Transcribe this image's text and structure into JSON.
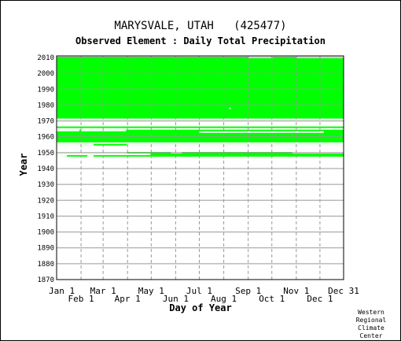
{
  "chart_data": {
    "type": "heatmap",
    "title": "MARYSVALE, UTAH   (425477)",
    "subtitle": "Observed Element : Daily Total Precipitation",
    "xlabel": "Day of Year",
    "ylabel": "Year",
    "x_ticks_row1": [
      "Jan 1",
      "Mar 1",
      "May 1",
      "Jul 1",
      "Sep 1",
      "Nov 1",
      "Dec 31"
    ],
    "x_ticks_row2": [
      "Feb 1",
      "Apr 1",
      "Jun 1",
      "Aug 1",
      "Oct 1",
      "Dec 1"
    ],
    "x_tick_days": [
      1,
      32,
      60,
      91,
      121,
      152,
      182,
      213,
      244,
      274,
      305,
      335,
      365
    ],
    "y_ticks": [
      2010,
      2000,
      1990,
      1980,
      1970,
      1960,
      1950,
      1940,
      1930,
      1920,
      1910,
      1900,
      1890,
      1880,
      1870
    ],
    "xlim": [
      1,
      365
    ],
    "ylim": [
      1870,
      2011
    ],
    "grid": true,
    "data_color": "#00ff00",
    "data_description": "Green marks days with observed precipitation data",
    "coverage_periods": [
      {
        "year_start": 1970.5,
        "year_end": 2010.5,
        "day_start": 1,
        "day_end": 365
      },
      {
        "year_start": 1954.5,
        "year_end": 1966.5,
        "day_start": 1,
        "day_end": 365
      },
      {
        "year_start": 1947.5,
        "year_end": 1950.5,
        "day_start": 1,
        "day_end": 365
      }
    ],
    "gaps": [
      {
        "year_start": 1970.5,
        "year_end": 1971.5,
        "day_start": 1,
        "day_end": 365
      },
      {
        "year_start": 2009.5,
        "year_end": 2010.5,
        "day_start": 244,
        "day_end": 275
      },
      {
        "year_start": 2009.5,
        "year_end": 2010.5,
        "day_start": 305,
        "day_end": 365
      },
      {
        "year_start": 1964.5,
        "year_end": 1965.5,
        "day_start": 1,
        "day_end": 365
      },
      {
        "year_start": 1963.5,
        "year_end": 1964.5,
        "day_start": 1,
        "day_end": 30
      },
      {
        "year_start": 1963.5,
        "year_end": 1964.5,
        "day_start": 32,
        "day_end": 89
      },
      {
        "year_start": 1962.5,
        "year_end": 1963.5,
        "day_start": 182,
        "day_end": 340
      },
      {
        "year_start": 1955.5,
        "year_end": 1956.5,
        "day_start": 1,
        "day_end": 365
      },
      {
        "year_start": 1954.5,
        "year_end": 1955.5,
        "day_start": 1,
        "day_end": 48
      },
      {
        "year_start": 1954.5,
        "year_end": 1955.5,
        "day_start": 90,
        "day_end": 365
      },
      {
        "year_start": 1950.5,
        "year_end": 1951.5,
        "day_start": 1,
        "day_end": 365
      },
      {
        "year_start": 1949.5,
        "year_end": 1950.5,
        "day_start": 1,
        "day_end": 90
      },
      {
        "year_start": 1949.5,
        "year_end": 1950.5,
        "day_start": 146,
        "day_end": 160
      },
      {
        "year_start": 1949.5,
        "year_end": 1950.5,
        "day_start": 300,
        "day_end": 365
      },
      {
        "year_start": 1948.5,
        "year_end": 1949.5,
        "day_start": 1,
        "day_end": 120
      },
      {
        "year_start": 1947.5,
        "year_end": 1948.5,
        "day_start": 1,
        "day_end": 14
      },
      {
        "year_start": 1947.5,
        "year_end": 1948.5,
        "day_start": 40,
        "day_end": 48
      },
      {
        "year_start": 1977.5,
        "year_end": 1978.5,
        "day_start": 220,
        "day_end": 222
      }
    ]
  },
  "credit": [
    "Western",
    "Regional",
    "Climate",
    "Center"
  ]
}
